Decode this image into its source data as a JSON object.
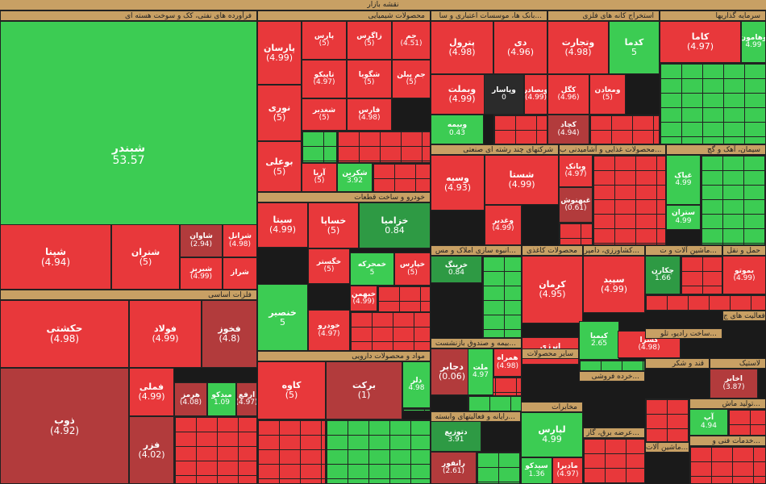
{
  "header": {
    "title": "نقشه بازار"
  },
  "colors": {
    "red": "#e8383b",
    "darkred": "#b23b3c",
    "green": "#3ccc53",
    "darkgreen": "#2e9a44",
    "black": "#2b2b2b",
    "header": "#c8a064"
  },
  "sectors": [
    "فرآورده های نفتی، کک و سوخت هسته ای",
    "محصولات شیمیایی",
    "بانک ها، موسسات اعتباری و سا...",
    "استخراج کانه های فلزی",
    "سرمایه گذاریها",
    "خودرو و ساخت قطعات",
    "فلزات اساسی",
    "مواد و محصولات دارویی",
    "شرکتهای چند رشته ای صنعتی",
    "محصولات غذایی و آشامیدنی ب...",
    "سیمان، آهک و گچ",
    "انبوه سازی املاک و مس...",
    "محصولات کاغذی",
    "کشاورزی، دامپر...",
    "ماشین آلات و ت...",
    "حمل و نقل",
    "سایر محصولات",
    "رایانه و فعالیتهای وابسته...",
    "مخابرات",
    "عرضه برق، گاز...",
    "بیمه و صندوق بازنشست...",
    "قند و شکر",
    "لاستیک",
    "ساخت رادیو، تلو...",
    "فعالیت های ج...",
    "خدمات فنی و...",
    "تولید ماش...",
    "ماشین آلات...",
    "خرده فروشی..."
  ],
  "chart_data": {
    "type": "treemap",
    "title": "نقشه بازار",
    "tiles": [
      {
        "symbol": "شبندر",
        "value": "53.57",
        "sector": "فرآورده های نفتی، کک و سوخت هسته ای",
        "color": "green"
      },
      {
        "symbol": "شپنا",
        "value": "(4.94)",
        "sector": "فرآورده های نفتی، کک و سوخت هسته ای",
        "color": "red"
      },
      {
        "symbol": "شتران",
        "value": "(5)",
        "sector": "فرآورده های نفتی، کک و سوخت هسته ای",
        "color": "red"
      },
      {
        "symbol": "شاوان",
        "value": "(2.94)",
        "sector": "فرآورده های نفتی، کک و سوخت هسته ای",
        "color": "darkred"
      },
      {
        "symbol": "شرانل",
        "value": "(4.98)",
        "sector": "فرآورده های نفتی، کک و سوخت هسته ای",
        "color": "red"
      },
      {
        "symbol": "شبریز",
        "value": "(4.99)",
        "sector": "فرآورده های نفتی، کک و سوخت هسته ای",
        "color": "red"
      },
      {
        "symbol": "شراز",
        "value": "",
        "sector": "فرآورده های نفتی، کک و سوخت هسته ای",
        "color": "red"
      },
      {
        "symbol": "پارسان",
        "value": "(4.99)",
        "sector": "محصولات شیمیایی",
        "color": "red"
      },
      {
        "symbol": "پارس",
        "value": "(5)",
        "sector": "محصولات شیمیایی",
        "color": "red"
      },
      {
        "symbol": "زاگرس",
        "value": "(5)",
        "sector": "محصولات شیمیایی",
        "color": "red"
      },
      {
        "symbol": "جم",
        "value": "(4.51)",
        "sector": "محصولات شیمیایی",
        "color": "red"
      },
      {
        "symbol": "نوری",
        "value": "(5)",
        "sector": "محصولات شیمیایی",
        "color": "red"
      },
      {
        "symbol": "تاپیکو",
        "value": "(4.97)",
        "sector": "محصولات شیمیایی",
        "color": "red"
      },
      {
        "symbol": "شگویا",
        "value": "(5)",
        "sector": "محصولات شیمیایی",
        "color": "red"
      },
      {
        "symbol": "جم پیلن",
        "value": "(5)",
        "sector": "محصولات شیمیایی",
        "color": "red"
      },
      {
        "symbol": "شغدیر",
        "value": "(5)",
        "sector": "محصولات شیمیایی",
        "color": "red"
      },
      {
        "symbol": "فارس",
        "value": "(4.98)",
        "sector": "محصولات شیمیایی",
        "color": "red"
      },
      {
        "symbol": "بوعلی",
        "value": "(5)",
        "sector": "محصولات شیمیایی",
        "color": "red"
      },
      {
        "symbol": "آریا",
        "value": "(5)",
        "sector": "محصولات شیمیایی",
        "color": "red"
      },
      {
        "symbol": "شکربن",
        "value": "3.92",
        "sector": "محصولات شیمیایی",
        "color": "green"
      },
      {
        "symbol": "پترول",
        "value": "(4.98)",
        "sector": "محصولات شیمیایی",
        "color": "red"
      },
      {
        "symbol": "دی",
        "value": "(4.96)",
        "sector": "بانک ها، موسسات اعتباری و سا...",
        "color": "red"
      },
      {
        "symbol": "وبملت",
        "value": "(4.99)",
        "sector": "بانک ها، موسسات اعتباری و سا...",
        "color": "red"
      },
      {
        "symbol": "وپاسار",
        "value": "0",
        "sector": "بانک ها، موسسات اعتباری و سا...",
        "color": "black"
      },
      {
        "symbol": "وبصادر",
        "value": "(4.99)",
        "sector": "بانک ها، موسسات اعتباری و سا...",
        "color": "red"
      },
      {
        "symbol": "وبیمه",
        "value": "0.43",
        "sector": "بانک ها، موسسات اعتباری و سا...",
        "color": "green"
      },
      {
        "symbol": "وتجارت",
        "value": "(4.98)",
        "sector": "بانک ها، موسسات اعتباری و سا...",
        "color": "red"
      },
      {
        "symbol": "کدما",
        "value": "5",
        "sector": "استخراج کانه های فلزی",
        "color": "green"
      },
      {
        "symbol": "کگل",
        "value": "(4.96)",
        "sector": "استخراج کانه های فلزی",
        "color": "red"
      },
      {
        "symbol": "ومعادن",
        "value": "(5)",
        "sector": "استخراج کانه های فلزی",
        "color": "red"
      },
      {
        "symbol": "کچاد",
        "value": "(4.94)",
        "sector": "استخراج کانه های فلزی",
        "color": "darkred"
      },
      {
        "symbol": "کاما",
        "value": "(4.97)",
        "sector": "استخراج کانه های فلزی",
        "color": "red"
      },
      {
        "symbol": "وهامون",
        "value": "4.99",
        "sector": "سرمایه گذاریها",
        "color": "green"
      },
      {
        "symbol": "وسپه",
        "value": "(4.93)",
        "sector": "سرمایه گذاریها",
        "color": "red"
      },
      {
        "symbol": "شستا",
        "value": "(4.99)",
        "sector": "شرکتهای چند رشته ای صنعتی",
        "color": "red"
      },
      {
        "symbol": "وغدیر",
        "value": "(4.99)",
        "sector": "شرکتهای چند رشته ای صنعتی",
        "color": "red"
      },
      {
        "symbol": "وبانک",
        "value": "(4.97)",
        "sector": "شرکتهای چند رشته ای صنعتی",
        "color": "red"
      },
      {
        "symbol": "غبهنوش",
        "value": "(0.61)",
        "sector": "محصولات غذایی و آشامیدنی ب...",
        "color": "darkred"
      },
      {
        "symbol": "غپاک",
        "value": "4.99",
        "sector": "محصولات غذایی و آشامیدنی ب...",
        "color": "green"
      },
      {
        "symbol": "ستران",
        "value": "4.99",
        "sector": "سیمان، آهک و گچ",
        "color": "green"
      },
      {
        "symbol": "سیتا",
        "value": "(4.99)",
        "sector": "سیمان، آهک و گچ",
        "color": "red"
      },
      {
        "symbol": "خساپا",
        "value": "(5)",
        "sector": "خودرو و ساخت قطعات",
        "color": "red"
      },
      {
        "symbol": "خزامیا",
        "value": "0.84",
        "sector": "خودرو و ساخت قطعات",
        "color": "darkgreen"
      },
      {
        "symbol": "خگستر",
        "value": "(5)",
        "sector": "خودرو و ساخت قطعات",
        "color": "red"
      },
      {
        "symbol": "خمحرکه",
        "value": "5",
        "sector": "خودرو و ساخت قطعات",
        "color": "green"
      },
      {
        "symbol": "خپارس",
        "value": "(5)",
        "sector": "خودرو و ساخت قطعات",
        "color": "red"
      },
      {
        "symbol": "خنصیر",
        "value": "5",
        "sector": "خودرو و ساخت قطعات",
        "color": "green"
      },
      {
        "symbol": "خودرو",
        "value": "(4.97)",
        "sector": "خودرو و ساخت قطعات",
        "color": "red"
      },
      {
        "symbol": "خبهمن",
        "value": "(4.99)",
        "sector": "خودرو و ساخت قطعات",
        "color": "red"
      },
      {
        "symbol": "خرینگ",
        "value": "0.84",
        "sector": "خودرو و ساخت قطعات",
        "color": "darkgreen"
      },
      {
        "symbol": "کرمان",
        "value": "(4.95)",
        "sector": "انبوه سازی املاک و مس...",
        "color": "red"
      },
      {
        "symbol": "سپید",
        "value": "(4.99)",
        "sector": "محصولات کاغذی",
        "color": "red"
      },
      {
        "symbol": "چکارن",
        "value": "1.66",
        "sector": "ماشین آلات و ت...",
        "color": "darkgreen"
      },
      {
        "symbol": "بموتو",
        "value": "(4.99)",
        "sector": "ماشین آلات و ت...",
        "color": "red"
      },
      {
        "symbol": "حکشتی",
        "value": "(4.98)",
        "sector": "حمل و نقل",
        "color": "red"
      },
      {
        "symbol": "فولاد",
        "value": "(4.99)",
        "sector": "فلزات اساسی",
        "color": "red"
      },
      {
        "symbol": "فخوز",
        "value": "(4.8)",
        "sector": "فلزات اساسی",
        "color": "darkred"
      },
      {
        "symbol": "ذوب",
        "value": "(4.92)",
        "sector": "فلزات اساسی",
        "color": "darkred"
      },
      {
        "symbol": "فملی",
        "value": "(4.99)",
        "sector": "فلزات اساسی",
        "color": "red"
      },
      {
        "symbol": "هرمز",
        "value": "(4.08)",
        "sector": "فلزات اساسی",
        "color": "darkred"
      },
      {
        "symbol": "میدکو",
        "value": "1.09",
        "sector": "فلزات اساسی",
        "color": "green"
      },
      {
        "symbol": "ارفع",
        "value": "(4.97)",
        "sector": "فلزات اساسی",
        "color": "darkred"
      },
      {
        "symbol": "فزر",
        "value": "(4.02)",
        "sector": "فلزات اساسی",
        "color": "darkred"
      },
      {
        "symbol": "کاوه",
        "value": "(5)",
        "sector": "فلزات اساسی",
        "color": "red"
      },
      {
        "symbol": "برکت",
        "value": "(1)",
        "sector": "مواد و محصولات دارویی",
        "color": "darkred"
      },
      {
        "symbol": "دلر",
        "value": "4.98",
        "sector": "مواد و محصولات دارویی",
        "color": "green"
      },
      {
        "symbol": "دجابر",
        "value": "(0.06)",
        "sector": "مواد و محصولات دارویی",
        "color": "darkred"
      },
      {
        "symbol": "ملت",
        "value": "4.97",
        "sector": "بیمه و صندوق بازنشست...",
        "color": "green"
      },
      {
        "symbol": "انرژی",
        "value": "(5)",
        "sector": "بیمه و صندوق بازنشست...",
        "color": "red"
      },
      {
        "symbol": "کیمیا",
        "value": "2.65",
        "sector": "کشاورزی، دامپر...",
        "color": "green"
      },
      {
        "symbol": "کسرا",
        "value": "(4.98)",
        "sector": "سایر محصولات",
        "color": "red"
      },
      {
        "symbol": "دتوزیع",
        "value": "3.91",
        "sector": "سایر محصولات",
        "color": "darkgreen"
      },
      {
        "symbol": "لپارس",
        "value": "4.99",
        "sector": "ساخت رادیو، تلو...",
        "color": "green"
      },
      {
        "symbol": "رانفور",
        "value": "(2.61)",
        "sector": "رایانه و فعالیتهای وابسته...",
        "color": "darkred"
      },
      {
        "symbol": "اخابر",
        "value": "(3.87)",
        "sector": "مخابرات",
        "color": "darkred"
      },
      {
        "symbol": "آپ",
        "value": "4.94",
        "sector": "رایانه و فعالیتهای وابسته...",
        "color": "green"
      },
      {
        "symbol": "سیدکو",
        "value": "1.36",
        "sector": "قند و شکر",
        "color": "green"
      },
      {
        "symbol": "مادیرا",
        "value": "(4.97)",
        "sector": "تولید ماش...",
        "color": "red"
      },
      {
        "symbol": "همراه",
        "value": "(4.98)",
        "sector": "مخابرات",
        "color": "red"
      },
      {
        "symbol": "های",
        "value": "(5)",
        "sector": "مخابرات",
        "color": "red"
      },
      {
        "symbol": "دانا",
        "value": "(5)",
        "sector": "بیمه و صندوق بازنشست...",
        "color": "red"
      }
    ]
  }
}
